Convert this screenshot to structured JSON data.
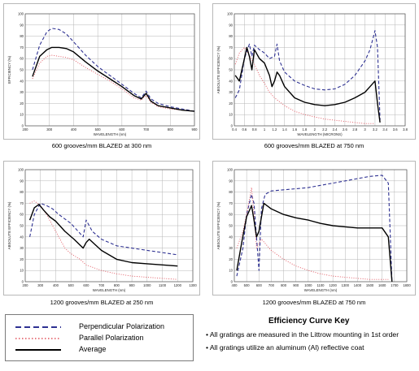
{
  "chart_data": [
    {
      "type": "line",
      "caption": "600 grooves/mm BLAZED at 300 nm",
      "xlabel": "WAVELENGTH (nm)",
      "ylabel": "EFFICIENCY (%)",
      "xlim": [
        200,
        900
      ],
      "ylim": [
        0,
        100
      ],
      "xticks": [
        "200",
        "300",
        "400",
        "500",
        "600",
        "700",
        "800",
        "900"
      ],
      "yticks": [
        "0",
        "10",
        "20",
        "30",
        "40",
        "50",
        "60",
        "70",
        "80",
        "90",
        "100"
      ],
      "series": [
        {
          "kind": "perp",
          "x": [
            230,
            260,
            290,
            310,
            340,
            370,
            400,
            450,
            500,
            550,
            600,
            650,
            680,
            700,
            720,
            750,
            800,
            850,
            900
          ],
          "y": [
            50,
            72,
            84,
            87,
            86,
            82,
            75,
            63,
            53,
            45,
            37,
            29,
            25,
            31,
            24,
            20,
            17,
            15,
            13
          ]
        },
        {
          "kind": "par",
          "x": [
            230,
            260,
            290,
            310,
            340,
            370,
            400,
            450,
            500,
            550,
            600,
            650,
            680,
            700,
            720,
            750,
            800,
            850,
            900
          ],
          "y": [
            42,
            56,
            62,
            63,
            62,
            61,
            59,
            52,
            46,
            40,
            33,
            25,
            23,
            27,
            21,
            17,
            15,
            14,
            13
          ]
        },
        {
          "kind": "avg",
          "x": [
            230,
            260,
            290,
            310,
            340,
            370,
            400,
            450,
            500,
            550,
            600,
            650,
            680,
            700,
            720,
            750,
            800,
            850,
            900
          ],
          "y": [
            44,
            62,
            68,
            70,
            70,
            69,
            66,
            57,
            49,
            42,
            35,
            27,
            24,
            29,
            22,
            18,
            16,
            14,
            13
          ]
        }
      ]
    },
    {
      "type": "line",
      "caption": "600 grooves/mm BLAZED at 750 nm",
      "xlabel": "WAVELENGTH (MICRONS)",
      "ylabel": "ABSOLUTE EFFICIENCY (%)",
      "xlim": [
        0.4,
        3.8
      ],
      "ylim": [
        0,
        100
      ],
      "xticks": [
        "0.4",
        "0.6",
        "0.8",
        "1",
        "1.2",
        "1.4",
        "1.6",
        "1.8",
        "2",
        "2.2",
        "2.4",
        "2.6",
        "2.8",
        "3",
        "3.2",
        "3.4",
        "3.6",
        "3.8"
      ],
      "yticks": [
        "0",
        "10",
        "20",
        "30",
        "40",
        "50",
        "60",
        "70",
        "80",
        "90",
        "100"
      ],
      "series": [
        {
          "kind": "perp",
          "x": [
            0.42,
            0.5,
            0.6,
            0.7,
            0.75,
            0.8,
            0.9,
            1.0,
            1.1,
            1.2,
            1.25,
            1.3,
            1.4,
            1.6,
            1.8,
            2.0,
            2.2,
            2.4,
            2.6,
            2.8,
            3.0,
            3.1,
            3.2,
            3.25,
            3.3
          ],
          "y": [
            25,
            32,
            60,
            73,
            62,
            72,
            68,
            65,
            60,
            62,
            73,
            58,
            48,
            40,
            36,
            33,
            32,
            33,
            37,
            45,
            58,
            68,
            85,
            70,
            5
          ]
        },
        {
          "kind": "par",
          "x": [
            0.42,
            0.5,
            0.6,
            0.7,
            0.8,
            0.9,
            1.0,
            1.1,
            1.2,
            1.4,
            1.6,
            1.8,
            2.0,
            2.2,
            2.4,
            2.6,
            2.8,
            3.0,
            3.2
          ],
          "y": [
            55,
            65,
            70,
            63,
            55,
            45,
            38,
            30,
            25,
            18,
            13,
            10,
            8,
            6,
            5,
            4,
            3,
            2,
            2
          ]
        },
        {
          "kind": "avg",
          "x": [
            0.42,
            0.5,
            0.6,
            0.65,
            0.7,
            0.75,
            0.8,
            0.85,
            0.9,
            1.0,
            1.1,
            1.15,
            1.2,
            1.25,
            1.3,
            1.4,
            1.6,
            1.8,
            2.0,
            2.2,
            2.4,
            2.6,
            2.8,
            3.0,
            3.1,
            3.2,
            3.25,
            3.3
          ],
          "y": [
            45,
            40,
            60,
            70,
            62,
            50,
            68,
            64,
            60,
            56,
            45,
            35,
            40,
            48,
            45,
            35,
            25,
            21,
            19,
            18,
            19,
            21,
            25,
            30,
            35,
            40,
            20,
            3
          ]
        }
      ]
    },
    {
      "type": "line",
      "caption": "1200 grooves/mm BLAZED at 250 nm",
      "xlabel": "WAVELENGTH (nm)",
      "ylabel": "ABSOLUTE EFFICIENCY (%)",
      "xlim": [
        200,
        1300
      ],
      "ylim": [
        0,
        100
      ],
      "xticks": [
        "200",
        "300",
        "400",
        "500",
        "600",
        "700",
        "800",
        "900",
        "1000",
        "1100",
        "1200",
        "1300"
      ],
      "yticks": [
        "0",
        "10",
        "20",
        "30",
        "40",
        "50",
        "60",
        "70",
        "80",
        "90",
        "100"
      ],
      "series": [
        {
          "kind": "perp",
          "x": [
            230,
            260,
            300,
            340,
            380,
            420,
            500,
            580,
            600,
            640,
            700,
            800,
            900,
            1000,
            1100,
            1200
          ],
          "y": [
            40,
            60,
            70,
            68,
            65,
            60,
            52,
            40,
            55,
            45,
            38,
            32,
            30,
            28,
            26,
            24
          ]
        },
        {
          "kind": "par",
          "x": [
            230,
            260,
            300,
            340,
            400,
            460,
            500,
            560,
            600,
            700,
            800,
            900,
            1000,
            1100,
            1200
          ],
          "y": [
            70,
            72,
            68,
            60,
            45,
            30,
            25,
            20,
            15,
            10,
            7,
            5,
            4,
            3,
            2
          ]
        },
        {
          "kind": "avg",
          "x": [
            230,
            260,
            290,
            320,
            360,
            400,
            460,
            520,
            580,
            600,
            620,
            660,
            700,
            800,
            900,
            1000,
            1100,
            1200
          ],
          "y": [
            55,
            66,
            69,
            64,
            58,
            54,
            45,
            38,
            30,
            35,
            38,
            33,
            28,
            20,
            17,
            16,
            15,
            14
          ]
        }
      ]
    },
    {
      "type": "line",
      "caption": "1200 grooves/mm BLAZED at 750 nm",
      "xlabel": "WAVELENGTH (nm)",
      "ylabel": "ABSOLUTE EFFICIENCY (%)",
      "xlim": [
        400,
        1800
      ],
      "ylim": [
        0,
        100
      ],
      "xticks": [
        "400",
        "500",
        "600",
        "700",
        "800",
        "900",
        "1000",
        "1100",
        "1200",
        "1300",
        "1400",
        "1500",
        "1600",
        "1700",
        "1800"
      ],
      "yticks": [
        "0",
        "10",
        "20",
        "30",
        "40",
        "50",
        "60",
        "70",
        "80",
        "90",
        "100"
      ],
      "series": [
        {
          "kind": "perp",
          "x": [
            420,
            470,
            500,
            540,
            560,
            580,
            600,
            620,
            650,
            700,
            800,
            900,
            1000,
            1100,
            1200,
            1300,
            1400,
            1500,
            1600,
            1650,
            1680
          ],
          "y": [
            5,
            30,
            60,
            78,
            70,
            40,
            10,
            65,
            78,
            81,
            82,
            83,
            84,
            86,
            88,
            90,
            92,
            94,
            95,
            88,
            0
          ]
        },
        {
          "kind": "par",
          "x": [
            420,
            470,
            500,
            540,
            560,
            580,
            620,
            700,
            800,
            900,
            1000,
            1100,
            1200,
            1300,
            1400,
            1500,
            1600,
            1650
          ],
          "y": [
            30,
            45,
            60,
            84,
            60,
            30,
            38,
            28,
            20,
            14,
            10,
            7,
            5,
            4,
            3,
            2,
            2,
            2
          ]
        },
        {
          "kind": "avg",
          "x": [
            420,
            460,
            500,
            540,
            560,
            580,
            600,
            640,
            700,
            800,
            900,
            1000,
            1100,
            1200,
            1300,
            1400,
            1500,
            1600,
            1650,
            1680
          ],
          "y": [
            10,
            35,
            58,
            68,
            55,
            40,
            45,
            70,
            65,
            60,
            57,
            55,
            52,
            50,
            49,
            48,
            48,
            48,
            40,
            0
          ]
        }
      ]
    }
  ],
  "legend": {
    "perp": "Perpendicular Polarization",
    "par": "Parallel Polarization",
    "avg": "Average"
  },
  "key": {
    "title": "Efficiency Curve Key",
    "note1": "• All gratings are measured in the Littrow mounting in 1st order",
    "note2": "• All gratings utilize an aluminum (Al) reflective coat"
  },
  "colors": {
    "perp": "#2e3192",
    "par": "#e0505a",
    "avg": "#000000",
    "grid": "#b5b5b5"
  }
}
